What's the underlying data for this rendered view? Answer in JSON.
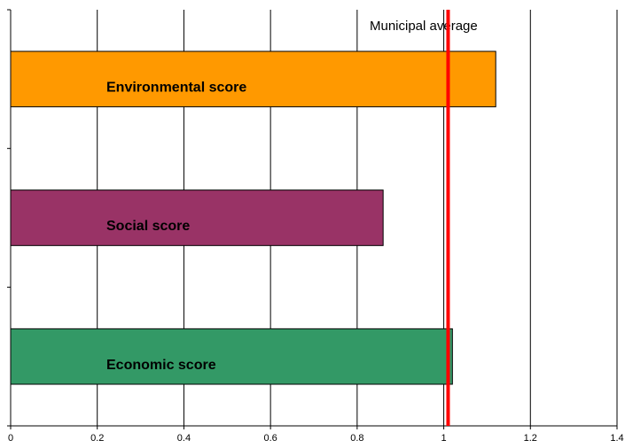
{
  "chart_data": {
    "type": "hbar",
    "categories": [
      "Environmental score",
      "Social score",
      "Economic score"
    ],
    "values": [
      1.12,
      0.86,
      1.02
    ],
    "colors": [
      "#ff9900",
      "#993366",
      "#339966"
    ],
    "xlim": [
      0,
      1.4
    ],
    "xticks": [
      0,
      0.2,
      0.4,
      0.6,
      0.8,
      1,
      1.2,
      1.4
    ],
    "grid": true,
    "reference_line": {
      "label": "Municipal average",
      "value": 1.01,
      "color": "#ff0000"
    }
  }
}
